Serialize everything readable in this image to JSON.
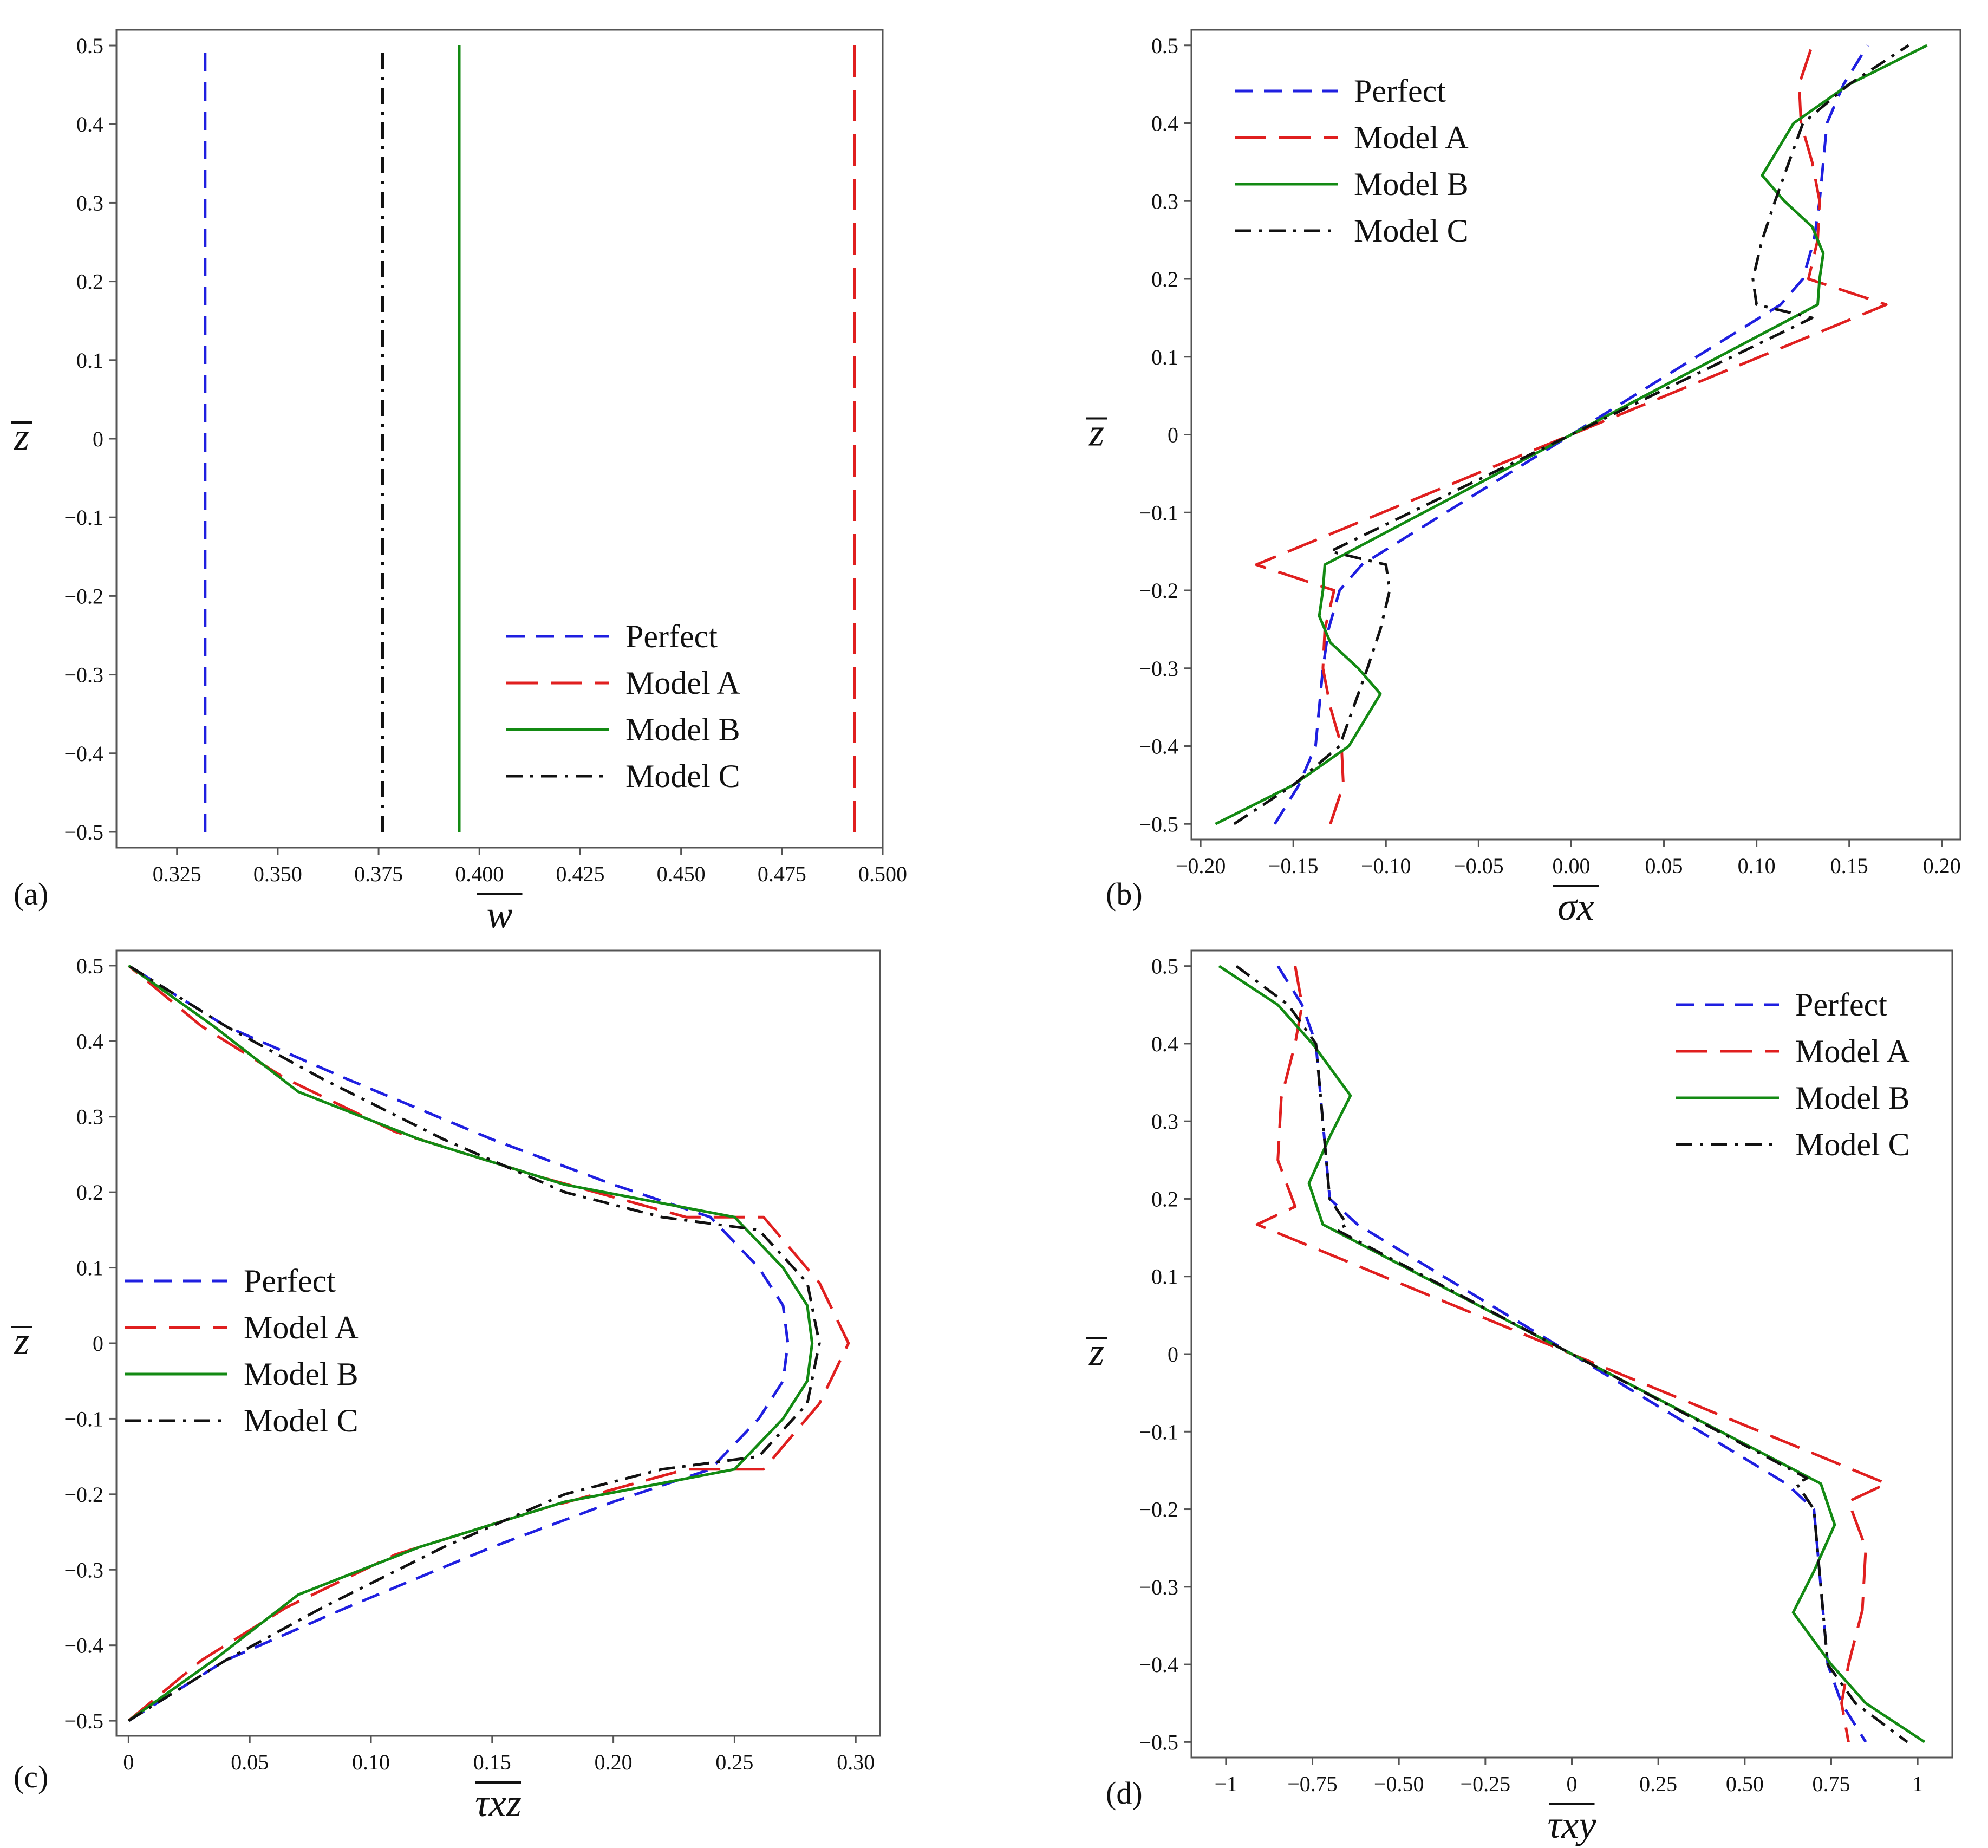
{
  "figure": {
    "panel_labels": [
      "(a)",
      "(b)",
      "(c)",
      "(d)"
    ]
  },
  "series_styles": [
    {
      "name": "Perfect",
      "color": "#1f1fe0",
      "dash": "dashed"
    },
    {
      "name": "Model A",
      "color": "#e01f1f",
      "dash": "longdash"
    },
    {
      "name": "Model B",
      "color": "#138a13",
      "dash": "solid"
    },
    {
      "name": "Model C",
      "color": "#111111",
      "dash": "dashdot"
    }
  ],
  "chart_data": [
    {
      "id": "a",
      "type": "line",
      "panel_label": "(a)",
      "xlabel": "w",
      "ylabel": "z",
      "xlim": [
        0.31,
        0.5
      ],
      "ylim": [
        -0.52,
        0.52
      ],
      "xticks": [
        "0.325",
        "0.350",
        "0.375",
        "0.400",
        "0.425",
        "0.450",
        "0.475",
        "0.500"
      ],
      "yticks": [
        "0.5",
        "0.4",
        "0.3",
        "0.2",
        "0.1",
        "0",
        "−0.1",
        "−0.2",
        "−0.3",
        "−0.4",
        "−0.5"
      ],
      "legend": [
        "Perfect",
        "Model A",
        "Model B",
        "Model C"
      ],
      "legend_position": "bottom-right",
      "series": [
        {
          "name": "Perfect",
          "x": [
            0.332,
            0.332
          ],
          "z": [
            -0.5,
            0.5
          ]
        },
        {
          "name": "Model A",
          "x": [
            0.493,
            0.493
          ],
          "z": [
            -0.5,
            0.5
          ]
        },
        {
          "name": "Model B",
          "x": [
            0.395,
            0.395
          ],
          "z": [
            -0.5,
            0.5
          ]
        },
        {
          "name": "Model C",
          "x": [
            0.376,
            0.376
          ],
          "z": [
            -0.5,
            0.5
          ]
        }
      ]
    },
    {
      "id": "b",
      "type": "line",
      "panel_label": "(b)",
      "xlabel": "σx",
      "ylabel": "z",
      "xlim": [
        -0.205,
        0.21
      ],
      "ylim": [
        -0.52,
        0.52
      ],
      "xticks": [
        "−0.20",
        "−0.15",
        "−0.10",
        "−0.05",
        "0.00",
        "0.05",
        "0.10",
        "0.15",
        "0.20"
      ],
      "yticks": [
        "0.5",
        "0.4",
        "0.3",
        "0.2",
        "0.1",
        "0",
        "−0.1",
        "−0.2",
        "−0.3",
        "−0.4",
        "−0.5"
      ],
      "legend": [
        "Perfect",
        "Model A",
        "Model B",
        "Model C"
      ],
      "legend_position": "top-left",
      "series": [
        {
          "name": "Perfect",
          "x": [
            -0.16,
            -0.147,
            -0.138,
            -0.134,
            -0.131,
            -0.125,
            -0.113,
            0,
            0.113,
            0.125,
            0.131,
            0.134,
            0.138,
            0.147,
            0.16
          ],
          "z": [
            -0.5,
            -0.45,
            -0.4,
            -0.3,
            -0.25,
            -0.2,
            -0.167,
            0,
            0.167,
            0.2,
            0.25,
            0.3,
            0.4,
            0.45,
            0.5
          ]
        },
        {
          "name": "Model A",
          "x": [
            -0.13,
            -0.123,
            -0.124,
            -0.13,
            -0.134,
            -0.133,
            -0.128,
            -0.17,
            0,
            0.17,
            0.128,
            0.133,
            0.134,
            0.13,
            0.124,
            0.123,
            0.13
          ],
          "z": [
            -0.5,
            -0.45,
            -0.4,
            -0.35,
            -0.3,
            -0.25,
            -0.2,
            -0.167,
            0,
            0.167,
            0.2,
            0.25,
            0.3,
            0.35,
            0.4,
            0.45,
            0.5
          ]
        },
        {
          "name": "Model B",
          "x": [
            -0.192,
            -0.15,
            -0.12,
            -0.103,
            -0.115,
            -0.13,
            -0.136,
            -0.134,
            -0.133,
            0,
            0.133,
            0.134,
            0.136,
            0.13,
            0.115,
            0.103,
            0.12,
            0.15,
            0.192
          ],
          "z": [
            -0.5,
            -0.45,
            -0.4,
            -0.333,
            -0.3,
            -0.267,
            -0.233,
            -0.2,
            -0.167,
            0,
            0.167,
            0.2,
            0.233,
            0.267,
            0.3,
            0.333,
            0.4,
            0.45,
            0.5
          ]
        },
        {
          "name": "Model C",
          "x": [
            -0.182,
            -0.15,
            -0.125,
            -0.11,
            -0.103,
            -0.098,
            -0.1,
            -0.13,
            0,
            0.13,
            0.1,
            0.098,
            0.103,
            0.11,
            0.125,
            0.15,
            0.182
          ],
          "z": [
            -0.5,
            -0.45,
            -0.4,
            -0.3,
            -0.25,
            -0.2,
            -0.167,
            -0.15,
            0,
            0.15,
            0.167,
            0.2,
            0.25,
            0.3,
            0.4,
            0.45,
            0.5
          ]
        }
      ]
    },
    {
      "id": "c",
      "type": "line",
      "panel_label": "(c)",
      "xlabel": "τxz",
      "ylabel": "z",
      "xlim": [
        -0.005,
        0.31
      ],
      "ylim": [
        -0.52,
        0.52
      ],
      "xticks": [
        "0",
        "0.05",
        "0.10",
        "0.15",
        "0.20",
        "0.25",
        "0.30"
      ],
      "yticks": [
        "0.5",
        "0.4",
        "0.3",
        "0.2",
        "0.1",
        "0",
        "−0.1",
        "−0.2",
        "−0.3",
        "−0.4",
        "−0.5"
      ],
      "legend": [
        "Perfect",
        "Model A",
        "Model B",
        "Model C"
      ],
      "legend_position": "center-left",
      "series": [
        {
          "name": "Perfect",
          "x": [
            0,
            0.04,
            0.09,
            0.15,
            0.2,
            0.24,
            0.26,
            0.27,
            0.272,
            0.27,
            0.26,
            0.24,
            0.2,
            0.15,
            0.09,
            0.04,
            0
          ],
          "z": [
            -0.5,
            -0.42,
            -0.35,
            -0.27,
            -0.21,
            -0.167,
            -0.1,
            -0.05,
            0,
            0.05,
            0.1,
            0.167,
            0.21,
            0.27,
            0.35,
            0.42,
            0.5
          ]
        },
        {
          "name": "Model A",
          "x": [
            0,
            0.03,
            0.065,
            0.11,
            0.17,
            0.23,
            0.262,
            0.285,
            0.297,
            0.285,
            0.262,
            0.23,
            0.17,
            0.11,
            0.065,
            0.03,
            0
          ],
          "z": [
            -0.5,
            -0.42,
            -0.35,
            -0.28,
            -0.22,
            -0.167,
            -0.167,
            -0.08,
            0,
            0.08,
            0.167,
            0.167,
            0.22,
            0.28,
            0.35,
            0.42,
            0.5
          ]
        },
        {
          "name": "Model B",
          "x": [
            0,
            0.035,
            0.07,
            0.12,
            0.18,
            0.25,
            0.27,
            0.28,
            0.282,
            0.28,
            0.27,
            0.25,
            0.18,
            0.12,
            0.07,
            0.035,
            0
          ],
          "z": [
            -0.5,
            -0.42,
            -0.333,
            -0.27,
            -0.21,
            -0.167,
            -0.1,
            -0.05,
            0,
            0.05,
            0.1,
            0.167,
            0.21,
            0.27,
            0.333,
            0.42,
            0.5
          ]
        },
        {
          "name": "Model C",
          "x": [
            0,
            0.04,
            0.08,
            0.13,
            0.18,
            0.22,
            0.26,
            0.28,
            0.285,
            0.28,
            0.26,
            0.22,
            0.18,
            0.13,
            0.08,
            0.04,
            0
          ],
          "z": [
            -0.5,
            -0.42,
            -0.35,
            -0.27,
            -0.2,
            -0.167,
            -0.15,
            -0.08,
            0,
            0.08,
            0.15,
            0.167,
            0.2,
            0.27,
            0.35,
            0.42,
            0.5
          ]
        }
      ]
    },
    {
      "id": "d",
      "type": "line",
      "panel_label": "(d)",
      "xlabel": "τxy",
      "ylabel": "z",
      "xlim": [
        -1.1,
        1.1
      ],
      "ylim": [
        -0.52,
        0.52
      ],
      "xticks": [
        "−1",
        "−0.75",
        "−0.50",
        "−0.25",
        "0",
        "0.25",
        "0.50",
        "0.75",
        "1"
      ],
      "yticks": [
        "0.5",
        "0.4",
        "0.3",
        "0.2",
        "0.1",
        "0",
        "−0.1",
        "−0.2",
        "−0.3",
        "−0.4",
        "−0.5"
      ],
      "legend": [
        "Perfect",
        "Model A",
        "Model B",
        "Model C"
      ],
      "legend_position": "top-right",
      "series": [
        {
          "name": "Perfect",
          "x": [
            -0.85,
            -0.78,
            -0.74,
            -0.72,
            -0.7,
            -0.62,
            0,
            0.62,
            0.7,
            0.72,
            0.74,
            0.78,
            0.85
          ],
          "z": [
            0.5,
            0.45,
            0.4,
            0.3,
            0.2,
            0.167,
            0,
            -0.167,
            -0.2,
            -0.3,
            -0.4,
            -0.45,
            -0.5
          ]
        },
        {
          "name": "Model A",
          "x": [
            -0.8,
            -0.78,
            -0.8,
            -0.84,
            -0.85,
            -0.8,
            -0.91,
            0,
            0.91,
            0.8,
            0.85,
            0.84,
            0.8,
            0.78,
            0.8
          ],
          "z": [
            0.5,
            0.45,
            0.4,
            0.33,
            0.25,
            0.19,
            0.167,
            0,
            -0.167,
            -0.19,
            -0.25,
            -0.33,
            -0.4,
            -0.45,
            -0.5
          ]
        },
        {
          "name": "Model B",
          "x": [
            -1.02,
            -0.85,
            -0.75,
            -0.64,
            -0.7,
            -0.76,
            -0.72,
            0,
            0.72,
            0.76,
            0.7,
            0.64,
            0.75,
            0.85,
            1.02
          ],
          "z": [
            0.5,
            0.45,
            0.4,
            0.333,
            0.28,
            0.22,
            0.167,
            0,
            -0.167,
            -0.22,
            -0.28,
            -0.333,
            -0.4,
            -0.45,
            -0.5
          ]
        },
        {
          "name": "Model C",
          "x": [
            -0.97,
            -0.82,
            -0.74,
            -0.72,
            -0.7,
            -0.65,
            -0.68,
            0,
            0.68,
            0.65,
            0.7,
            0.72,
            0.74,
            0.82,
            0.97
          ],
          "z": [
            0.5,
            0.45,
            0.4,
            0.3,
            0.2,
            0.167,
            0.16,
            0,
            -0.16,
            -0.167,
            -0.2,
            -0.3,
            -0.4,
            -0.45,
            -0.5
          ]
        }
      ]
    }
  ]
}
